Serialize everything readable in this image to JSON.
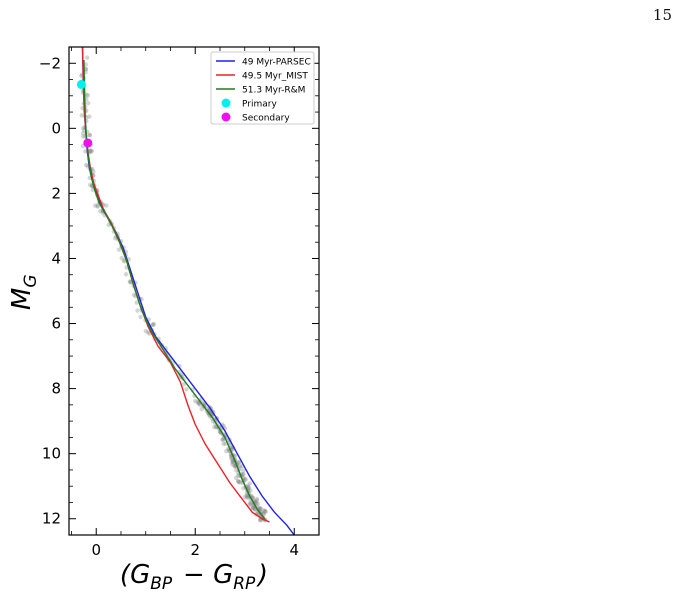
{
  "page_number": "15",
  "chart_data": {
    "type": "line",
    "title": "",
    "xlabel": "(G_BP − G_RP)",
    "ylabel": "M_G",
    "xlim": [
      -0.55,
      4.5
    ],
    "ylim": [
      12.5,
      -2.5
    ],
    "y_inverted": true,
    "x_ticks": [
      0,
      2,
      4
    ],
    "y_ticks": [
      -2,
      0,
      2,
      4,
      6,
      8,
      10,
      12
    ],
    "grid": false,
    "legend_position": "top-right",
    "series": [
      {
        "name": "49 Myr-PARSEC",
        "color": "#1f22e8",
        "x": [
          -0.28,
          -0.27,
          -0.26,
          -0.24,
          -0.22,
          -0.2,
          -0.18,
          -0.14,
          -0.08,
          0.0,
          0.1,
          0.25,
          0.4,
          0.55,
          0.7,
          0.85,
          1.0,
          1.2,
          1.45,
          1.7,
          2.0,
          2.3,
          2.6,
          2.85,
          3.1,
          3.35,
          3.6,
          3.85,
          4.0
        ],
        "y": [
          -2.6,
          -2.0,
          -1.3,
          -0.6,
          -0.1,
          0.3,
          0.7,
          1.2,
          1.6,
          2.0,
          2.4,
          2.8,
          3.2,
          3.7,
          4.4,
          5.1,
          5.8,
          6.4,
          6.9,
          7.4,
          8.0,
          8.6,
          9.3,
          10.0,
          10.7,
          11.3,
          11.8,
          12.2,
          12.5
        ]
      },
      {
        "name": "49.5 Myr_MIST",
        "color": "#e8222a",
        "x": [
          -0.28,
          -0.27,
          -0.26,
          -0.24,
          -0.22,
          -0.2,
          -0.17,
          -0.12,
          -0.05,
          0.05,
          0.15,
          0.3,
          0.45,
          0.6,
          0.75,
          0.9,
          1.05,
          1.25,
          1.5,
          1.7,
          1.85,
          2.0,
          2.2,
          2.45,
          2.7,
          2.95,
          3.15,
          3.35,
          3.5
        ],
        "y": [
          -2.6,
          -2.0,
          -1.3,
          -0.6,
          -0.1,
          0.3,
          0.7,
          1.2,
          1.7,
          2.1,
          2.5,
          2.9,
          3.4,
          4.0,
          4.8,
          5.5,
          6.1,
          6.7,
          7.2,
          7.8,
          8.5,
          9.1,
          9.7,
          10.3,
          10.9,
          11.4,
          11.8,
          12.0,
          12.1
        ]
      },
      {
        "name": "51.3 Myr-R&M",
        "color": "#1f7f1f",
        "x": [
          -0.25,
          -0.24,
          -0.23,
          -0.22,
          -0.2,
          -0.18,
          -0.15,
          -0.1,
          -0.03,
          0.06,
          0.18,
          0.32,
          0.47,
          0.62,
          0.77,
          0.92,
          1.1,
          1.35,
          1.6,
          1.85,
          2.1,
          2.35,
          2.6,
          2.8,
          2.95,
          3.1,
          3.25,
          3.4
        ],
        "y": [
          -2.1,
          -1.5,
          -0.9,
          -0.3,
          0.2,
          0.6,
          1.0,
          1.5,
          1.9,
          2.3,
          2.6,
          3.0,
          3.5,
          4.1,
          4.9,
          5.6,
          6.2,
          6.8,
          7.4,
          7.9,
          8.4,
          8.9,
          9.5,
          10.2,
          10.8,
          11.3,
          11.7,
          12.0
        ]
      }
    ],
    "points": [
      {
        "name": "Primary",
        "color": "#00f0f0",
        "x": -0.3,
        "y": -1.35
      },
      {
        "name": "Secondary",
        "color": "#ee10ee",
        "x": -0.17,
        "y": 0.45
      }
    ],
    "members_color": "#888888"
  }
}
